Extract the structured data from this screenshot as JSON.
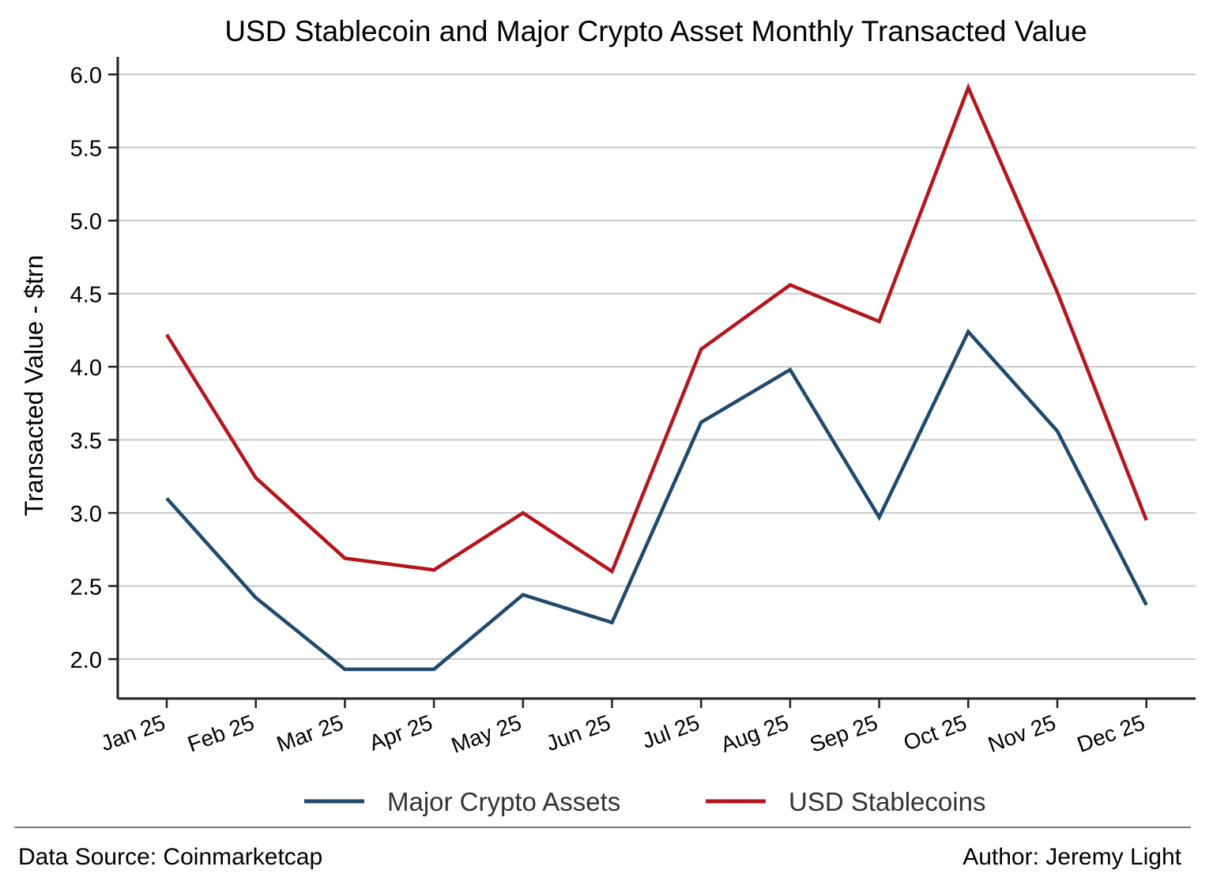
{
  "chart_data": {
    "type": "line",
    "title": "USD Stablecoin and Major Crypto Asset Monthly Transacted Value",
    "xlabel": "",
    "ylabel": "Transacted Value - $trn",
    "categories": [
      "Jan 25",
      "Feb 25",
      "Mar 25",
      "Apr 25",
      "May 25",
      "Jun 25",
      "Jul 25",
      "Aug 25",
      "Sep 25",
      "Oct 25",
      "Nov 25",
      "Dec 25"
    ],
    "ylim": [
      1.73,
      6.12
    ],
    "yticks": [
      "2.0",
      "2.5",
      "3.0",
      "3.5",
      "4.0",
      "4.5",
      "5.0",
      "5.5",
      "6.0"
    ],
    "grid": "horizontal",
    "legend_position": "bottom",
    "series": [
      {
        "name": "Major Crypto Assets",
        "color": "#1f4a6e",
        "values": [
          3.1,
          2.42,
          1.93,
          1.93,
          2.44,
          2.25,
          3.62,
          3.98,
          2.97,
          4.24,
          3.56,
          2.37
        ]
      },
      {
        "name": "USD Stablecoins",
        "color": "#b5161b",
        "values": [
          4.22,
          3.24,
          2.69,
          2.61,
          3.0,
          2.6,
          4.12,
          4.56,
          4.31,
          5.91,
          4.51,
          2.95
        ]
      }
    ]
  },
  "footer": {
    "source": "Data Source: Coinmarketcap",
    "author": "Author: Jeremy Light"
  }
}
